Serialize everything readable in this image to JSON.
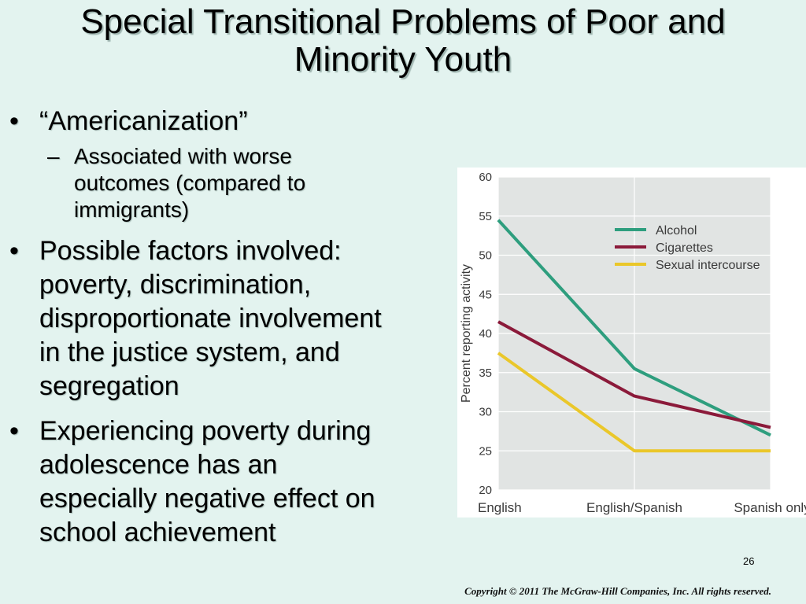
{
  "slide": {
    "title_line1": "Special Transitional Problems of Poor and",
    "title_line2": "Minority Youth",
    "bullet1": "“Americanization”",
    "sub1_line1": "Associated with worse",
    "sub1_line2": "outcomes (compared to",
    "sub1_line3": "immigrants)",
    "bullet2_line1": "Possible factors involved:",
    "bullet2_line2": "poverty, discrimination,",
    "bullet2_line3": "disproportionate involvement",
    "bullet2_line4": "in the justice system, and",
    "bullet2_line5": "segregation",
    "bullet3_line1": "Experiencing poverty during",
    "bullet3_line2": "adolescence has an",
    "bullet3_line3": "especially negative effect on",
    "bullet3_line4": "school achievement",
    "bullet_glyph": "•",
    "dash_glyph": "–",
    "page_number": "26",
    "copyright": "Copyright © 2011 The McGraw-Hill Companies, Inc. All rights reserved."
  },
  "chart_data": {
    "type": "line",
    "categories": [
      "English",
      "English/Spanish",
      "Spanish only"
    ],
    "series": [
      {
        "name": "Alcohol",
        "values": [
          54.5,
          35.5,
          27
        ],
        "color": "#2e9e7e"
      },
      {
        "name": "Cigarettes",
        "values": [
          41.5,
          32,
          28
        ],
        "color": "#8b1a3a"
      },
      {
        "name": "Sexual intercourse",
        "values": [
          37.5,
          25,
          25
        ],
        "color": "#eac72a"
      }
    ],
    "ylabel": "Percent reporting activity",
    "ylim": [
      20,
      60
    ],
    "yticks": [
      20,
      25,
      30,
      35,
      40,
      45,
      50,
      55,
      60
    ],
    "grid": true,
    "legend_position": "top-right",
    "plot_background": "#e1e4e3",
    "axis_text_color": "#3a3a3a"
  }
}
